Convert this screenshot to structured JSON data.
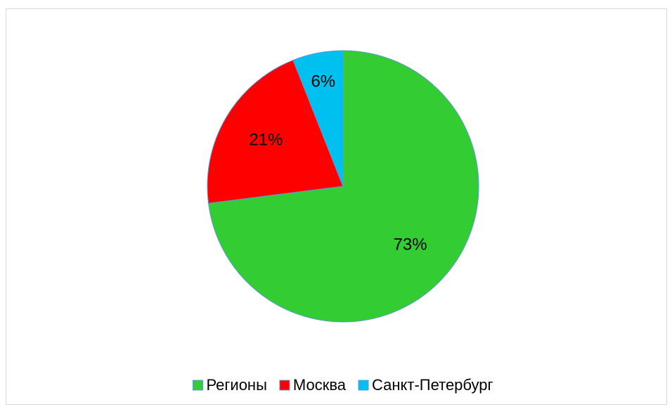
{
  "chart_data": {
    "type": "pie",
    "categories": [
      "Регионы",
      "Москва",
      "Санкт-Петербург"
    ],
    "values": [
      73,
      21,
      6
    ],
    "value_labels": [
      "73%",
      "21%",
      "6%"
    ],
    "colors": [
      "#33cc33",
      "#ff0000",
      "#00c0f0"
    ],
    "legend": "bottom"
  }
}
